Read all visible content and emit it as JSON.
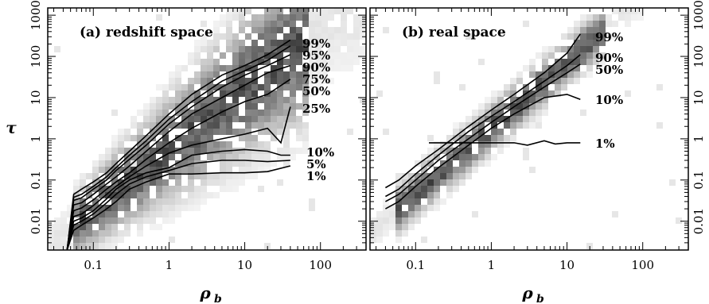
{
  "chart_data": [
    {
      "type": "line",
      "panel": "a",
      "title": "(a) redshift space",
      "xlabel": "ρ",
      "xlabel_subscript": "b",
      "ylabel": "τ",
      "xscale": "log",
      "yscale": "log",
      "xlim": [
        0.025,
        400
      ],
      "ylim": [
        0.002,
        1500
      ],
      "x_ticks": [
        0.1,
        1,
        10,
        100
      ],
      "x_tick_labels": [
        "0.1",
        "1",
        "10",
        "100"
      ],
      "y_ticks": [
        0.01,
        0.1,
        1,
        10,
        100,
        1000
      ],
      "y_tick_labels": [
        "0.01",
        "0.1",
        "1",
        "10",
        "100",
        "1000"
      ],
      "background": "grayscale 2D histogram of pixel density",
      "series": [
        {
          "name": "99%",
          "x": [
            0.045,
            0.055,
            0.07,
            0.1,
            0.15,
            0.2,
            0.3,
            0.5,
            1,
            2,
            5,
            10,
            20,
            40
          ],
          "y": [
            0.002,
            0.045,
            0.06,
            0.09,
            0.15,
            0.25,
            0.5,
            1.2,
            4,
            12,
            35,
            60,
            110,
            250
          ]
        },
        {
          "name": "95%",
          "x": [
            0.045,
            0.055,
            0.07,
            0.1,
            0.15,
            0.2,
            0.3,
            0.5,
            1,
            2,
            5,
            10,
            20,
            40
          ],
          "y": [
            0.002,
            0.038,
            0.045,
            0.07,
            0.12,
            0.2,
            0.4,
            0.9,
            3,
            8,
            25,
            45,
            80,
            180
          ]
        },
        {
          "name": "90%",
          "x": [
            0.045,
            0.055,
            0.07,
            0.1,
            0.15,
            0.2,
            0.3,
            0.5,
            1,
            2,
            5,
            10,
            20,
            40
          ],
          "y": [
            0.002,
            0.032,
            0.037,
            0.06,
            0.1,
            0.17,
            0.32,
            0.7,
            2.3,
            6,
            18,
            35,
            60,
            110
          ]
        },
        {
          "name": "75%",
          "x": [
            0.045,
            0.055,
            0.07,
            0.1,
            0.15,
            0.2,
            0.3,
            0.5,
            1,
            2,
            5,
            10,
            20,
            40
          ],
          "y": [
            0.002,
            0.025,
            0.028,
            0.045,
            0.08,
            0.12,
            0.22,
            0.5,
            1.5,
            4,
            10,
            20,
            40,
            60
          ]
        },
        {
          "name": "50%",
          "x": [
            0.045,
            0.055,
            0.07,
            0.1,
            0.15,
            0.2,
            0.3,
            0.5,
            1,
            2,
            5,
            10,
            20,
            40
          ],
          "y": [
            0.002,
            0.018,
            0.021,
            0.033,
            0.06,
            0.09,
            0.15,
            0.32,
            0.8,
            1.8,
            4.5,
            8,
            12,
            28
          ]
        },
        {
          "name": "25%",
          "x": [
            0.045,
            0.055,
            0.07,
            0.1,
            0.15,
            0.2,
            0.3,
            0.5,
            1,
            2,
            5,
            10,
            20,
            30,
            40
          ],
          "y": [
            0.002,
            0.013,
            0.015,
            0.024,
            0.045,
            0.07,
            0.12,
            0.22,
            0.45,
            0.7,
            1.0,
            1.3,
            1.8,
            0.8,
            6
          ]
        },
        {
          "name": "10%",
          "x": [
            0.045,
            0.055,
            0.07,
            0.1,
            0.15,
            0.2,
            0.3,
            0.5,
            1,
            2,
            5,
            10,
            20,
            30,
            40
          ],
          "y": [
            0.002,
            0.01,
            0.012,
            0.018,
            0.035,
            0.06,
            0.1,
            0.15,
            0.2,
            0.4,
            0.5,
            0.55,
            0.5,
            0.4,
            0.4
          ]
        },
        {
          "name": "5%",
          "x": [
            0.045,
            0.055,
            0.07,
            0.1,
            0.15,
            0.2,
            0.3,
            0.5,
            1,
            2,
            5,
            10,
            20,
            40
          ],
          "y": [
            0.002,
            0.008,
            0.01,
            0.015,
            0.028,
            0.045,
            0.08,
            0.12,
            0.17,
            0.25,
            0.3,
            0.3,
            0.28,
            0.3
          ]
        },
        {
          "name": "1%",
          "x": [
            0.045,
            0.055,
            0.07,
            0.1,
            0.15,
            0.2,
            0.3,
            0.5,
            1,
            2,
            5,
            10,
            20,
            40
          ],
          "y": [
            0.002,
            0.006,
            0.008,
            0.012,
            0.02,
            0.03,
            0.06,
            0.09,
            0.14,
            0.14,
            0.15,
            0.15,
            0.16,
            0.22
          ]
        }
      ]
    },
    {
      "type": "line",
      "panel": "b",
      "title": "(b) real space",
      "xlabel": "ρ",
      "xlabel_subscript": "b",
      "ylabel": "",
      "xscale": "log",
      "yscale": "log",
      "xlim": [
        0.025,
        400
      ],
      "ylim": [
        0.002,
        1500
      ],
      "x_ticks": [
        0.1,
        1,
        10,
        100
      ],
      "x_tick_labels": [
        "0.1",
        "1",
        "10",
        "100"
      ],
      "y_ticks": [
        0.01,
        0.1,
        1,
        10,
        100,
        1000
      ],
      "y_tick_labels": [
        "0.01",
        "0.1",
        "1",
        "10",
        "100",
        "1000"
      ],
      "background": "grayscale 2D histogram of pixel density",
      "series": [
        {
          "name": "99%",
          "x": [
            0.04,
            0.06,
            0.1,
            0.2,
            0.5,
            1,
            2,
            5,
            10,
            15
          ],
          "y": [
            0.065,
            0.1,
            0.22,
            0.55,
            2,
            5,
            12,
            40,
            120,
            350
          ]
        },
        {
          "name": "90%",
          "x": [
            0.04,
            0.06,
            0.1,
            0.2,
            0.5,
            1,
            2,
            5,
            10,
            15
          ],
          "y": [
            0.04,
            0.06,
            0.14,
            0.4,
            1.5,
            3.5,
            8,
            25,
            60,
            110
          ]
        },
        {
          "name": "50%",
          "x": [
            0.04,
            0.06,
            0.1,
            0.2,
            0.5,
            1,
            2,
            5,
            10,
            15
          ],
          "y": [
            0.03,
            0.045,
            0.1,
            0.3,
            1.0,
            2.5,
            6,
            18,
            40,
            65
          ]
        },
        {
          "name": "10%",
          "x": [
            0.04,
            0.06,
            0.1,
            0.2,
            0.5,
            1,
            2,
            5,
            10,
            15
          ],
          "y": [
            0.02,
            0.03,
            0.07,
            0.2,
            0.7,
            1.8,
            4,
            10,
            12,
            9
          ]
        },
        {
          "name": "1%",
          "x": [
            0.15,
            0.2,
            0.5,
            1,
            2,
            3,
            5,
            7,
            10,
            15
          ],
          "y": [
            0.8,
            0.8,
            0.8,
            0.8,
            0.8,
            0.7,
            0.9,
            0.75,
            0.8,
            0.8
          ]
        }
      ]
    }
  ]
}
